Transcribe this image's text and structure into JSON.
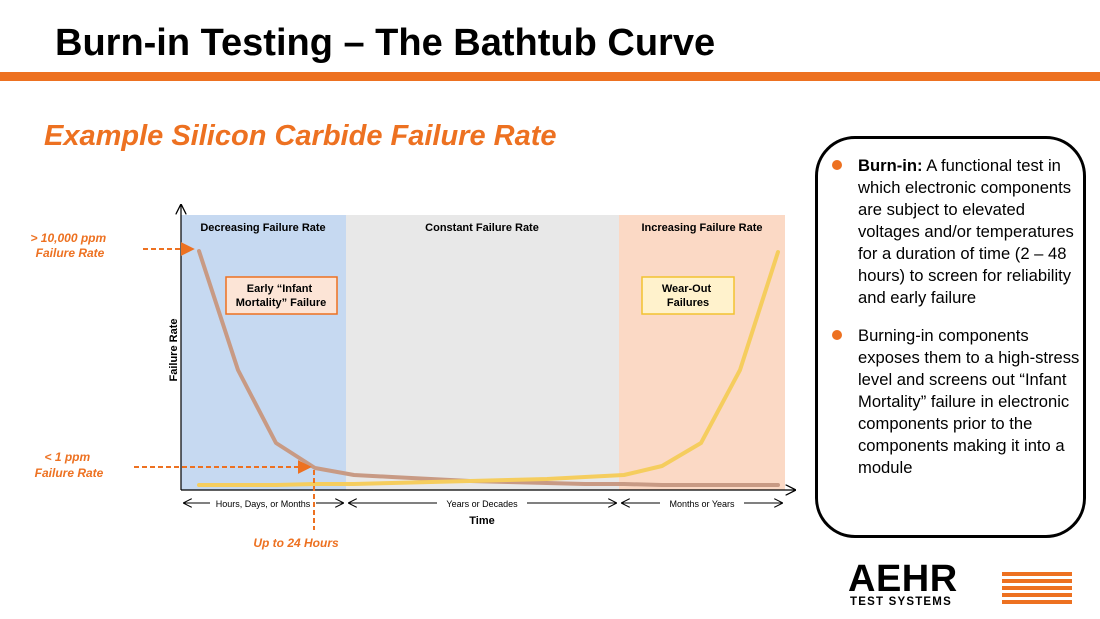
{
  "slide": {
    "title": "Burn-in Testing – The Bathtub Curve",
    "subtitle": "Example Silicon Carbide Failure Rate"
  },
  "chart_data": {
    "type": "line",
    "regions": [
      {
        "name": "Decreasing Failure Rate",
        "color": "#c6d9f1"
      },
      {
        "name": "Constant Failure Rate",
        "color": "#e8e8e8"
      },
      {
        "name": "Increasing Failure Rate",
        "color": "#fbd9c5"
      }
    ],
    "axes": {
      "y_label": "Failure Rate",
      "x_label": "Time",
      "x_spans": [
        "Hours, Days, or Months",
        "Years or Decades",
        "Months or Years"
      ]
    },
    "curve_colors": {
      "infant_mortality": "#c89a84",
      "wear_out": "#f5cd5e"
    },
    "callouts": {
      "infant": "Early “Infant Mortality” Failure",
      "wearout": "Wear-Out Failures"
    },
    "annotations": {
      "high": [
        "> 10,000 ppm",
        "Failure Rate"
      ],
      "low": [
        "< 1 ppm",
        "Failure Rate"
      ],
      "time": "Up to 24 Hours"
    },
    "accent_color": "#ed7121"
  },
  "info_box": {
    "bullets": [
      {
        "term": "Burn-in:",
        "text": " A functional test in which electronic components  are subject to elevated voltages and/or temperatures for a duration of time (2 – 48 hours) to screen for reliability and early failure"
      },
      {
        "term": "",
        "text": "Burning-in components exposes them to a high-stress level and screens out “Infant Mortality” failure in electronic components prior to the components making it into a module"
      }
    ]
  },
  "logo": {
    "word": "AEHR",
    "subtitle": "TEST SYSTEMS"
  }
}
